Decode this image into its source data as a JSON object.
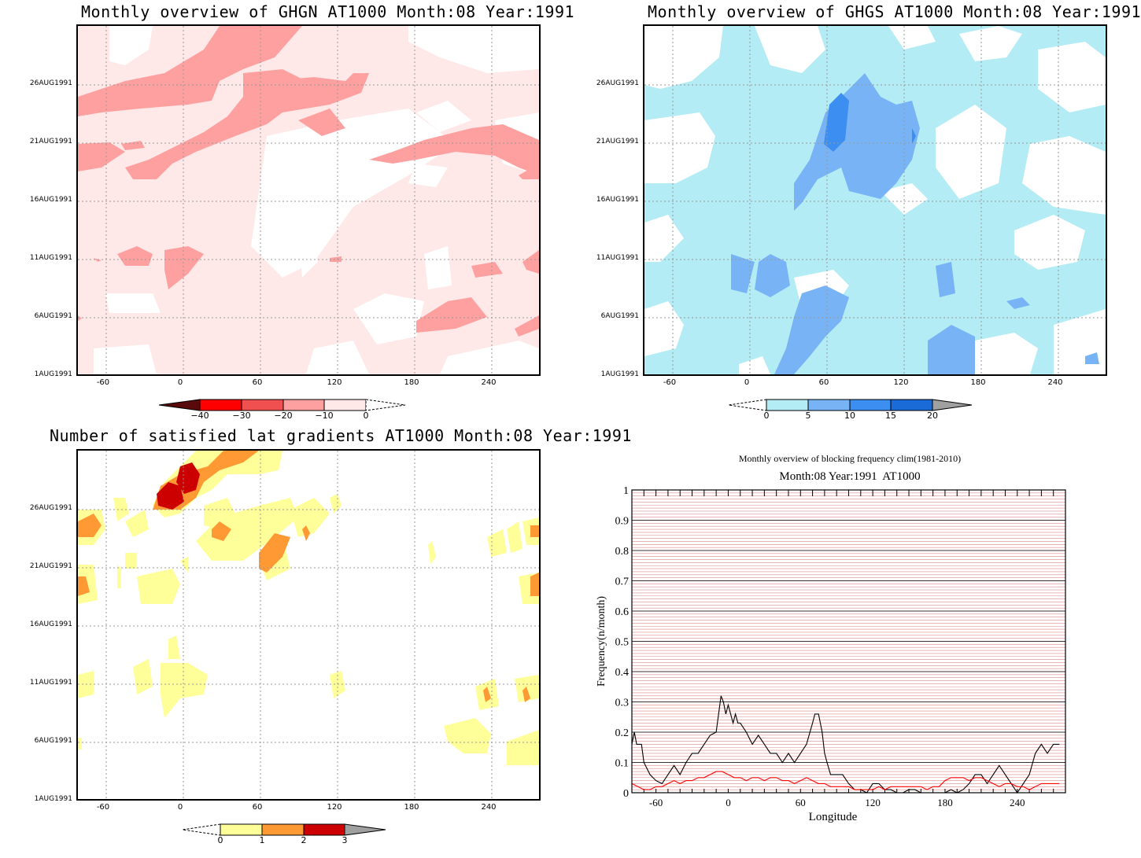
{
  "panels": {
    "ghgn": {
      "title": "Monthly overview of GHGN AT1000 Month:08 Year:1991",
      "colorbar_labels": [
        "−40",
        "−30",
        "−20",
        "−10",
        "0"
      ],
      "colors": [
        "#5a0a0a",
        "#ff0000",
        "#f05050",
        "#ffa0a0",
        "#ffe8e8"
      ]
    },
    "ghgs": {
      "title": "Monthly overview of GHGS AT1000 Month:08 Year:1991",
      "colorbar_labels": [
        "0",
        "5",
        "10",
        "15",
        "20"
      ],
      "colors": [
        "#b3ecf5",
        "#78b4f5",
        "#3c8ef0",
        "#1a6ad8",
        "#a0a0a0"
      ]
    },
    "gradients": {
      "title": "Number of satisfied lat gradients AT1000 Month:08 Year:1991",
      "colorbar_labels": [
        "0",
        "1",
        "2",
        "3"
      ],
      "colors": [
        "#ffff99",
        "#ff9933",
        "#cc0000",
        "#a0a0a0"
      ]
    },
    "frequency": {
      "title": "Monthly overview of blocking frequency clim(1981-2010)",
      "subtitle": "Month:08 Year:1991  AT1000"
    }
  },
  "map_axes": {
    "y_ticks": [
      "26AUG1991",
      "21AUG1991",
      "16AUG1991",
      "11AUG1991",
      "6AUG1991",
      "1AUG1991"
    ],
    "x_ticks": [
      "-60",
      "0",
      "60",
      "120",
      "180",
      "240"
    ]
  },
  "chart_data": [
    {
      "type": "heatmap",
      "title": "Monthly overview of GHGN AT1000 Month:08 Year:1991",
      "x_ticks": [
        -60,
        0,
        60,
        120,
        180,
        240
      ],
      "y_ticks": [
        "1AUG1991",
        "6AUG1991",
        "11AUG1991",
        "16AUG1991",
        "21AUG1991",
        "26AUG1991"
      ],
      "contour_levels": [
        -40,
        -30,
        -20,
        -10,
        0
      ]
    },
    {
      "type": "heatmap",
      "title": "Monthly overview of GHGS AT1000 Month:08 Year:1991",
      "x_ticks": [
        -60,
        0,
        60,
        120,
        180,
        240
      ],
      "y_ticks": [
        "1AUG1991",
        "6AUG1991",
        "11AUG1991",
        "16AUG1991",
        "21AUG1991",
        "26AUG1991"
      ],
      "contour_levels": [
        0,
        5,
        10,
        15,
        20
      ]
    },
    {
      "type": "heatmap",
      "title": "Number of satisfied lat gradients AT1000 Month:08 Year:1991",
      "x_ticks": [
        -60,
        0,
        60,
        120,
        180,
        240
      ],
      "y_ticks": [
        "1AUG1991",
        "6AUG1991",
        "11AUG1991",
        "16AUG1991",
        "21AUG1991",
        "26AUG1991"
      ],
      "contour_levels": [
        0,
        1,
        2,
        3
      ]
    },
    {
      "type": "line",
      "title": "Monthly overview of blocking frequency clim(1981-2010)",
      "subtitle": "Month:08 Year:1991  AT1000",
      "xlabel": "Longitude",
      "ylabel": "Frequency(n/month)",
      "xlim": [
        -80,
        280
      ],
      "ylim": [
        0,
        1
      ],
      "x_ticks": [
        -60,
        0,
        60,
        120,
        180,
        240
      ],
      "y_ticks": [
        0,
        0.1,
        0.2,
        0.3,
        0.4,
        0.5,
        0.6,
        0.7,
        0.8,
        0.9,
        1
      ],
      "grid": true,
      "series": [
        {
          "color": "#000000",
          "x": [
            -80,
            -78,
            -76,
            -74,
            -72,
            -70,
            -65,
            -60,
            -55,
            -50,
            -45,
            -40,
            -35,
            -30,
            -25,
            -20,
            -15,
            -10,
            -8,
            -6,
            -4,
            -2,
            0,
            2,
            4,
            6,
            8,
            10,
            15,
            20,
            25,
            30,
            35,
            40,
            45,
            50,
            55,
            60,
            65,
            70,
            72,
            75,
            78,
            80,
            82,
            85,
            88,
            90,
            95,
            100,
            105,
            110,
            115,
            120,
            125,
            130,
            135,
            140,
            145,
            150,
            155,
            160,
            165,
            170,
            175,
            180,
            185,
            190,
            195,
            200,
            205,
            210,
            215,
            220,
            225,
            230,
            235,
            240,
            245,
            250,
            255,
            260,
            265,
            270,
            275
          ],
          "y": [
            0.16,
            0.2,
            0.16,
            0.16,
            0.16,
            0.1,
            0.06,
            0.04,
            0.03,
            0.06,
            0.09,
            0.06,
            0.1,
            0.13,
            0.13,
            0.16,
            0.19,
            0.2,
            0.26,
            0.32,
            0.3,
            0.26,
            0.29,
            0.26,
            0.23,
            0.26,
            0.23,
            0.23,
            0.2,
            0.16,
            0.19,
            0.16,
            0.13,
            0.13,
            0.1,
            0.13,
            0.1,
            0.13,
            0.16,
            0.23,
            0.26,
            0.26,
            0.2,
            0.13,
            0.1,
            0.06,
            0.06,
            0.06,
            0.06,
            0.03,
            0.01,
            0.01,
            0.0,
            0.03,
            0.03,
            0.01,
            0.01,
            0.0,
            0.0,
            0.01,
            0.01,
            0.0,
            0.0,
            0.0,
            0.0,
            0.0,
            0.01,
            0.0,
            0.01,
            0.03,
            0.06,
            0.06,
            0.03,
            0.06,
            0.09,
            0.06,
            0.03,
            0.0,
            0.03,
            0.06,
            0.13,
            0.16,
            0.13,
            0.16,
            0.16
          ]
        },
        {
          "color": "#ff0000",
          "x": [
            -80,
            -75,
            -70,
            -65,
            -60,
            -55,
            -50,
            -45,
            -40,
            -35,
            -30,
            -25,
            -20,
            -15,
            -10,
            -5,
            0,
            5,
            10,
            15,
            20,
            25,
            30,
            35,
            40,
            45,
            50,
            55,
            60,
            65,
            70,
            75,
            80,
            85,
            90,
            95,
            100,
            105,
            110,
            115,
            120,
            125,
            130,
            135,
            140,
            145,
            150,
            155,
            160,
            165,
            170,
            175,
            180,
            185,
            190,
            195,
            200,
            205,
            210,
            215,
            220,
            225,
            230,
            235,
            240,
            245,
            250,
            255,
            260,
            265,
            270,
            275
          ],
          "y": [
            0.03,
            0.02,
            0.01,
            0.01,
            0.02,
            0.02,
            0.03,
            0.04,
            0.03,
            0.04,
            0.04,
            0.05,
            0.05,
            0.06,
            0.07,
            0.07,
            0.06,
            0.05,
            0.05,
            0.04,
            0.05,
            0.05,
            0.04,
            0.05,
            0.05,
            0.04,
            0.04,
            0.03,
            0.04,
            0.05,
            0.04,
            0.03,
            0.03,
            0.02,
            0.02,
            0.02,
            0.02,
            0.01,
            0.01,
            0.01,
            0.01,
            0.02,
            0.01,
            0.02,
            0.02,
            0.02,
            0.02,
            0.02,
            0.02,
            0.01,
            0.02,
            0.02,
            0.04,
            0.05,
            0.05,
            0.05,
            0.04,
            0.05,
            0.05,
            0.04,
            0.03,
            0.02,
            0.03,
            0.03,
            0.02,
            0.02,
            0.01,
            0.02,
            0.03,
            0.03,
            0.03,
            0.03
          ]
        }
      ]
    }
  ]
}
